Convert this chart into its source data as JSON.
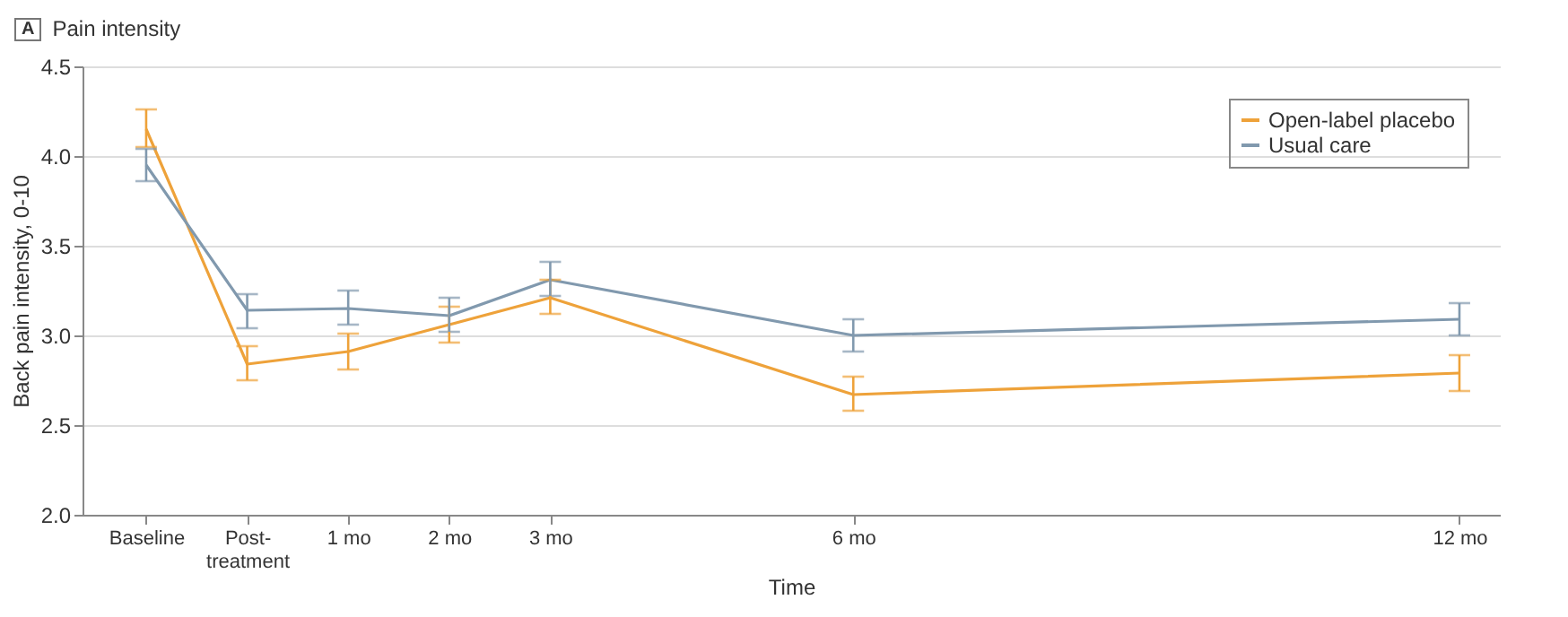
{
  "chart_data": {
    "type": "line",
    "title": "Pain intensity",
    "annotations": [
      "A"
    ],
    "xlabel": "Time",
    "ylabel": "Back pain intensity, 0-10",
    "x": [
      -1,
      0,
      1,
      2,
      3,
      6,
      12
    ],
    "xlim": [
      -1.63,
      12.4
    ],
    "xticks": [
      {
        "value": -1,
        "label": "Baseline"
      },
      {
        "value": 0,
        "label": "Post-\ntreatment"
      },
      {
        "value": 1,
        "label": "1 mo"
      },
      {
        "value": 2,
        "label": "2 mo"
      },
      {
        "value": 3,
        "label": "3 mo"
      },
      {
        "value": 6,
        "label": "6 mo"
      },
      {
        "value": 12,
        "label": "12 mo"
      }
    ],
    "ylim": [
      2.0,
      4.5
    ],
    "yticks": [
      {
        "value": 2,
        "label": "2.0"
      },
      2.5,
      {
        "value": 3,
        "label": "3.0"
      },
      3.5,
      {
        "value": 4,
        "label": "4.0"
      },
      4.5
    ],
    "grid": "y",
    "legend": "top right",
    "marker": "none",
    "line_style": "solid",
    "series": [
      {
        "name": "Open-label placebo",
        "color": "#eea23a",
        "values": [
          4.15,
          2.84,
          2.91,
          3.06,
          3.21,
          2.67,
          2.79
        ],
        "errors": [
          [
            4.05,
            4.26
          ],
          [
            2.75,
            2.94
          ],
          [
            2.81,
            3.01
          ],
          [
            2.96,
            3.16
          ],
          [
            3.12,
            3.31
          ],
          [
            2.58,
            2.77
          ],
          [
            2.69,
            2.89
          ]
        ]
      },
      {
        "name": "Usual care",
        "color": "#8199ae",
        "values": [
          3.95,
          3.14,
          3.15,
          3.11,
          3.31,
          3.0,
          3.09
        ],
        "errors": [
          [
            3.86,
            4.04
          ],
          [
            3.04,
            3.23
          ],
          [
            3.06,
            3.25
          ],
          [
            3.02,
            3.21
          ],
          [
            3.22,
            3.41
          ],
          [
            2.91,
            3.09
          ],
          [
            3.0,
            3.18
          ]
        ]
      }
    ]
  }
}
